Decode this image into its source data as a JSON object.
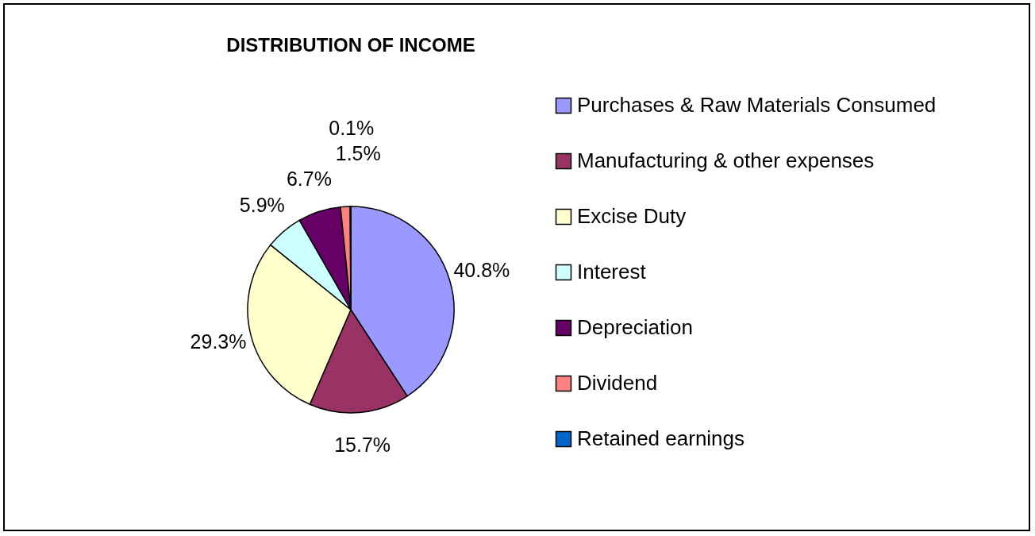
{
  "chart_data": {
    "type": "pie",
    "title": "DISTRIBUTION OF INCOME",
    "categories": [
      "Purchases & Raw Materials Consumed",
      "Manufacturing & other expenses",
      "Excise Duty",
      "Interest",
      "Depreciation",
      "Dividend",
      "Retained earnings"
    ],
    "values": [
      40.8,
      15.7,
      29.3,
      5.9,
      6.7,
      1.5,
      0.1
    ],
    "value_labels": [
      "40.8%",
      "15.7%",
      "29.3%",
      "5.9%",
      "6.7%",
      "1.5%",
      "0.1%"
    ],
    "colors": [
      "#9999ff",
      "#993366",
      "#ffffcc",
      "#ccffff",
      "#660066",
      "#ff8080",
      "#0066cc"
    ],
    "legend": "right"
  }
}
